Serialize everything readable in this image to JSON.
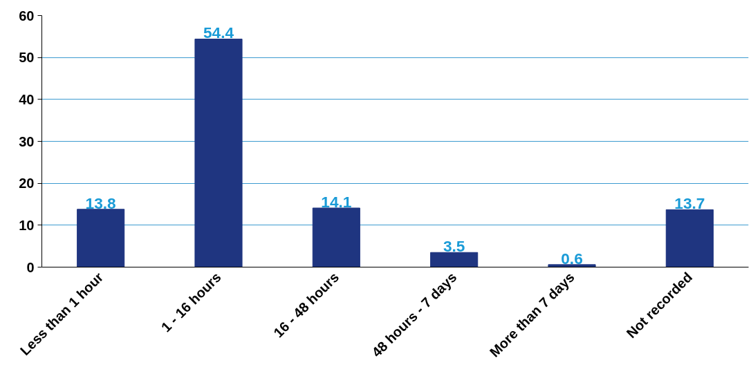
{
  "chart_data": {
    "type": "bar",
    "categories": [
      "Less than 1 hour",
      "1 - 16 hours",
      "16 - 48 hours",
      "48 hours - 7 days",
      "More than 7 days",
      "Not recorded"
    ],
    "values": [
      13.8,
      54.4,
      14.1,
      3.5,
      0.6,
      13.7
    ],
    "color": "#1f3580",
    "ylim": [
      0,
      60
    ],
    "yticks": [
      0,
      10,
      20,
      30,
      40,
      50,
      60
    ],
    "grid": "y",
    "data_labels": true
  }
}
